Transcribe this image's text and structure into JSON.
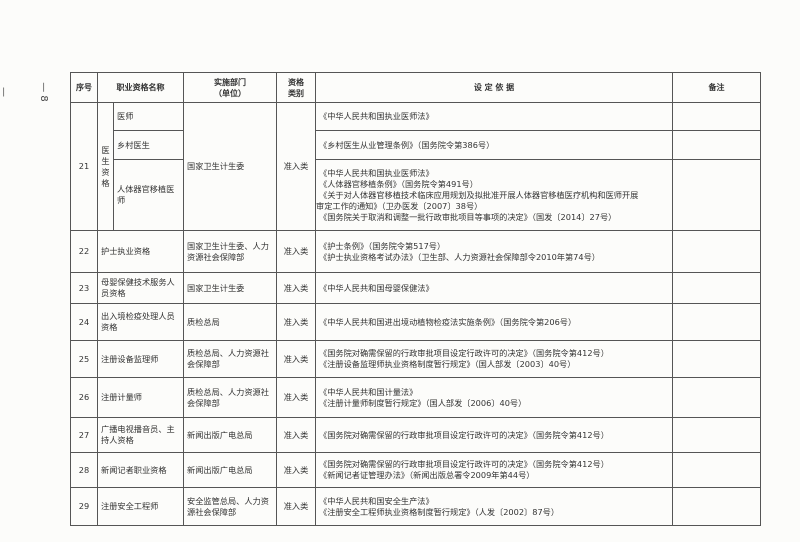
{
  "page_number": "— 8 —",
  "headers": {
    "no": "序号",
    "name": "职业资格名称",
    "dept": "实施部门\n（单位）",
    "dept_line1": "实施部门",
    "dept_line2": "（单位）",
    "category_line1": "资格",
    "category_line2": "类别",
    "basis": "设 定 依 据",
    "remarks": "备注"
  },
  "group21": {
    "no": "21",
    "group_name": "医生资格",
    "dept": "国家卫生计生委",
    "category": "准入类",
    "items": [
      {
        "name": "医师",
        "basis": [
          "《中华人民共和国执业医师法》"
        ],
        "remarks": ""
      },
      {
        "name": "乡村医生",
        "basis": [
          "《乡村医生从业管理条例》（国务院令第386号）"
        ],
        "remarks": ""
      },
      {
        "name": "人体器官移植医师",
        "basis": [
          "《中华人民共和国执业医师法》",
          "《人体器官移植条例》（国务院令第491号）",
          "《关于对人体器官移植技术临床应用规划及拟批准开展人体器官移植医疗机构和医师开展",
          "审定工作的通知》（卫办医发〔2007〕38号）",
          "《国务院关于取消和调整一批行政审批项目等事项的决定》（国发〔2014〕27号）"
        ],
        "remarks": ""
      }
    ]
  },
  "rows": [
    {
      "no": "22",
      "name": "护士执业资格",
      "dept": "国家卫生计生委、人力资源社会保障部",
      "category": "准入类",
      "basis": [
        "《护士条例》（国务院令第517号）",
        "《护士执业资格考试办法》（卫生部、人力资源社会保障部令2010年第74号）"
      ],
      "remarks": ""
    },
    {
      "no": "23",
      "name": "母婴保健技术服务人员资格",
      "dept": "国家卫生计生委",
      "category": "准入类",
      "basis": [
        "《中华人民共和国母婴保健法》"
      ],
      "remarks": ""
    },
    {
      "no": "24",
      "name": "出入境检疫处理人员资格",
      "dept": "质检总局",
      "category": "准入类",
      "basis": [
        "《中华人民共和国进出境动植物检疫法实施条例》（国务院令第206号）"
      ],
      "remarks": ""
    },
    {
      "no": "25",
      "name": "注册设备监理师",
      "dept": "质检总局、人力资源社会保障部",
      "category": "准入类",
      "basis": [
        "《国务院对确需保留的行政审批项目设定行政许可的决定》（国务院令第412号）",
        "《注册设备监理师执业资格制度暂行规定》（国人部发〔2003〕40号）"
      ],
      "remarks": ""
    },
    {
      "no": "26",
      "name": "注册计量师",
      "dept": "质检总局、人力资源社会保障部",
      "category": "准入类",
      "basis": [
        "《中华人民共和国计量法》",
        "《注册计量师制度暂行规定》（国人部发〔2006〕40号）"
      ],
      "remarks": ""
    },
    {
      "no": "27",
      "name": "广播电视播音员、主持人资格",
      "dept": "新闻出版广电总局",
      "category": "准入类",
      "basis": [
        "《国务院对确需保留的行政审批项目设定行政许可的决定》（国务院令第412号）"
      ],
      "remarks": ""
    },
    {
      "no": "28",
      "name": "新闻记者职业资格",
      "dept": "新闻出版广电总局",
      "category": "准入类",
      "basis": [
        "《国务院对确需保留的行政审批项目设定行政许可的决定》（国务院令第412号）",
        "《新闻记者证管理办法》（新闻出版总署令2009年第44号）"
      ],
      "remarks": ""
    },
    {
      "no": "29",
      "name": "注册安全工程师",
      "dept": "安全监管总局、人力资源社会保障部",
      "category": "准入类",
      "basis": [
        "《中华人民共和国安全生产法》",
        "《注册安全工程师执业资格制度暂行规定》（人发〔2002〕87号）"
      ],
      "remarks": ""
    }
  ]
}
